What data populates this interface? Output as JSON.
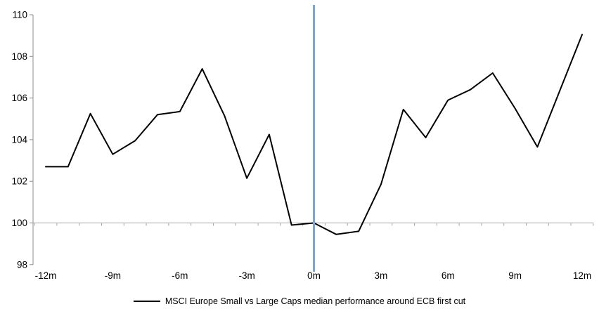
{
  "chart_data": {
    "type": "line",
    "title": "",
    "xlabel": "",
    "ylabel": "",
    "x_months": [
      -12,
      -11,
      -10,
      -9,
      -8,
      -7,
      -6,
      -5,
      -4,
      -3,
      -2,
      -1,
      0,
      1,
      2,
      3,
      4,
      5,
      6,
      7,
      8,
      9,
      10,
      11,
      12
    ],
    "series": [
      {
        "name": "MSCI Europe Small vs Large Caps median performance around ECB first cut",
        "values": [
          102.7,
          102.7,
          105.25,
          103.3,
          103.95,
          105.2,
          105.35,
          107.4,
          105.15,
          102.15,
          104.25,
          99.9,
          100.0,
          99.45,
          99.6,
          101.85,
          105.45,
          104.1,
          105.9,
          106.4,
          107.2,
          105.5,
          103.65,
          106.35,
          109.05
        ]
      }
    ],
    "x_ticks": [
      {
        "month": -12,
        "label": "-12m"
      },
      {
        "month": -9,
        "label": "-9m"
      },
      {
        "month": -6,
        "label": "-6m"
      },
      {
        "month": -3,
        "label": "-3m"
      },
      {
        "month": 0,
        "label": "0m"
      },
      {
        "month": 3,
        "label": "3m"
      },
      {
        "month": 6,
        "label": "6m"
      },
      {
        "month": 9,
        "label": "9m"
      },
      {
        "month": 12,
        "label": "12m"
      }
    ],
    "y_ticks": [
      98,
      100,
      102,
      104,
      106,
      108,
      110
    ],
    "ylim": [
      98,
      110
    ],
    "xlim_months": [
      -12.5,
      12.5
    ],
    "baseline_value": 100,
    "event_line_month": 0,
    "grid": "off",
    "legend_position": "bottom",
    "colors": {
      "series": "#000000",
      "event_line": "#7EA6D2",
      "baseline": "#A6A6A6",
      "axis": "#8C8C8C",
      "text": "#000000"
    }
  }
}
